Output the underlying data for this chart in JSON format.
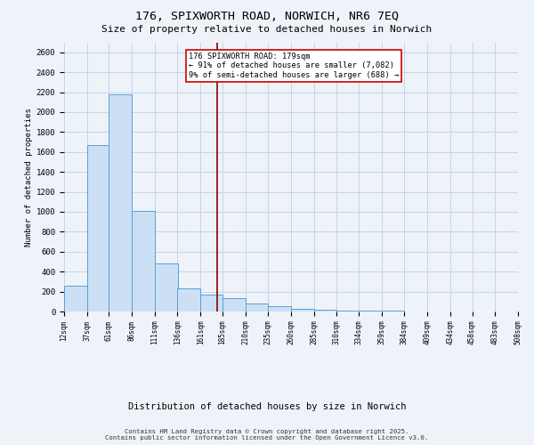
{
  "title_line1": "176, SPIXWORTH ROAD, NORWICH, NR6 7EQ",
  "title_line2": "Size of property relative to detached houses in Norwich",
  "xlabel": "Distribution of detached houses by size in Norwich",
  "ylabel": "Number of detached properties",
  "bar_color": "#cce0f5",
  "bar_edge_color": "#5a9fd4",
  "vline_color": "#8b0000",
  "vline_x": 179,
  "annotation_text": "176 SPIXWORTH ROAD: 179sqm\n← 91% of detached houses are smaller (7,082)\n9% of semi-detached houses are larger (688) →",
  "annotation_box_color": "white",
  "annotation_edge_color": "#cc0000",
  "footer_line1": "Contains HM Land Registry data © Crown copyright and database right 2025.",
  "footer_line2": "Contains public sector information licensed under the Open Government Licence v3.0.",
  "bin_edges": [
    12,
    37,
    61,
    86,
    111,
    136,
    161,
    185,
    210,
    235,
    260,
    285,
    310,
    334,
    359,
    384,
    409,
    434,
    458,
    483,
    508
  ],
  "counts": [
    258,
    1668,
    2178,
    1007,
    478,
    228,
    168,
    130,
    83,
    55,
    30,
    18,
    12,
    8,
    5,
    3,
    2,
    1,
    1,
    0
  ],
  "ylim": [
    0,
    2700
  ],
  "yticks": [
    0,
    200,
    400,
    600,
    800,
    1000,
    1200,
    1400,
    1600,
    1800,
    2000,
    2200,
    2400,
    2600
  ],
  "background_color": "#eef2f9",
  "grid_color": "#c5d5e8"
}
